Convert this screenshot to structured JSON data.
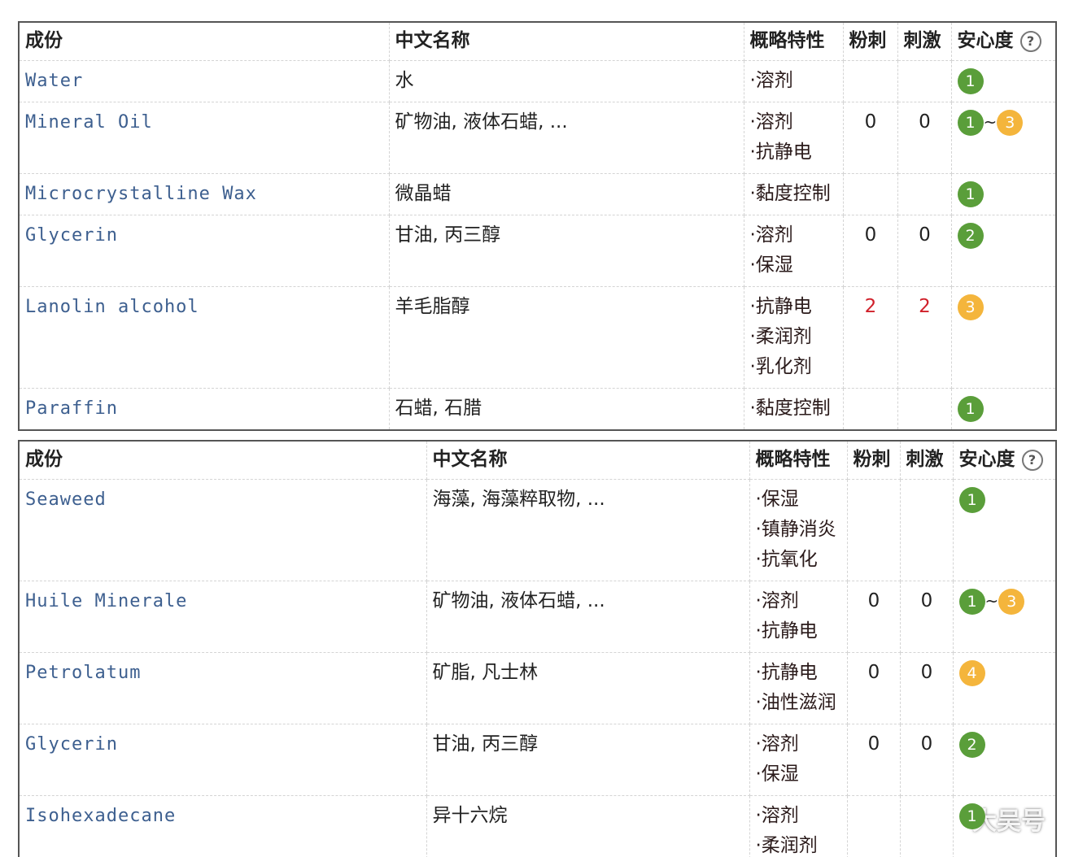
{
  "tables": [
    {
      "header": {
        "ingredient": "成份",
        "chinese_name": "中文名称",
        "properties": "概略特性",
        "acne": "粉刺",
        "irritation": "刺激",
        "safety": "安心度",
        "help_icon": "?"
      },
      "rows": [
        {
          "ingredient": "Water",
          "chinese_name": "水",
          "properties": [
            "·溶剂"
          ],
          "acne": null,
          "irritation": null,
          "safety": {
            "levels": [
              "1"
            ]
          }
        },
        {
          "ingredient": "Mineral Oil",
          "chinese_name": "矿物油, 液体石蜡, ...",
          "properties": [
            "·溶剂",
            "·抗静电"
          ],
          "acne": 0,
          "irritation": 0,
          "safety": {
            "levels": [
              "1",
              "3"
            ],
            "separator": "~"
          }
        },
        {
          "ingredient": "Microcrystalline Wax",
          "chinese_name": "微晶蜡",
          "properties": [
            "·黏度控制"
          ],
          "acne": null,
          "irritation": null,
          "safety": {
            "levels": [
              "1"
            ]
          }
        },
        {
          "ingredient": "Glycerin",
          "chinese_name": "甘油, 丙三醇",
          "properties": [
            "·溶剂",
            "·保湿"
          ],
          "acne": 0,
          "irritation": 0,
          "safety": {
            "levels": [
              "2"
            ]
          }
        },
        {
          "ingredient": "Lanolin alcohol",
          "chinese_name": "羊毛脂醇",
          "properties": [
            "·抗静电",
            "·柔润剂",
            "·乳化剂"
          ],
          "acne": 2,
          "irritation": 2,
          "safety": {
            "levels": [
              "3"
            ]
          }
        },
        {
          "ingredient": "Paraffin",
          "chinese_name": "石蜡, 石腊",
          "properties": [
            "·黏度控制"
          ],
          "acne": null,
          "irritation": null,
          "safety": {
            "levels": [
              "1"
            ]
          }
        }
      ]
    },
    {
      "header": {
        "ingredient": "成份",
        "chinese_name": "中文名称",
        "properties": "概略特性",
        "acne": "粉刺",
        "irritation": "刺激",
        "safety": "安心度",
        "help_icon": "?"
      },
      "rows": [
        {
          "ingredient": "Seaweed",
          "chinese_name": "海藻, 海藻粹取物, ...",
          "properties": [
            "·保湿",
            "·镇静消炎",
            "·抗氧化"
          ],
          "acne": null,
          "irritation": null,
          "safety": {
            "levels": [
              "1"
            ]
          }
        },
        {
          "ingredient": "Huile Minerale",
          "chinese_name": "矿物油, 液体石蜡, ...",
          "properties": [
            "·溶剂",
            "·抗静电"
          ],
          "acne": 0,
          "irritation": 0,
          "safety": {
            "levels": [
              "1",
              "3"
            ],
            "separator": "~"
          }
        },
        {
          "ingredient": "Petrolatum",
          "chinese_name": "矿脂, 凡士林",
          "properties": [
            "·抗静电",
            "·油性滋润"
          ],
          "acne": 0,
          "irritation": 0,
          "safety": {
            "levels": [
              "4"
            ]
          }
        },
        {
          "ingredient": "Glycerin",
          "chinese_name": "甘油, 丙三醇",
          "properties": [
            "·溶剂",
            "·保湿"
          ],
          "acne": 0,
          "irritation": 0,
          "safety": {
            "levels": [
              "2"
            ]
          }
        },
        {
          "ingredient": "Isohexadecane",
          "chinese_name": "异十六烷",
          "properties": [
            "·溶剂",
            "·柔润剂"
          ],
          "acne": null,
          "irritation": null,
          "safety": {
            "levels": [
              "1"
            ]
          }
        }
      ]
    }
  ],
  "watermark": "大吴号"
}
